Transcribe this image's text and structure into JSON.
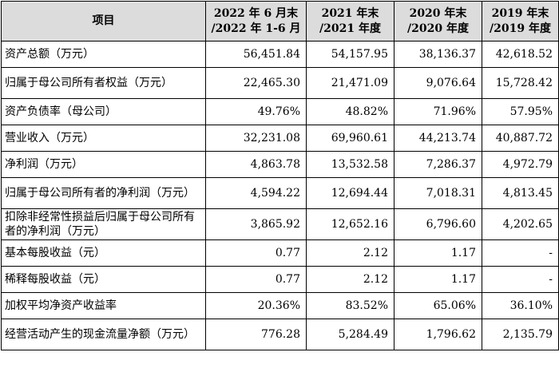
{
  "table": {
    "headers": [
      "项目",
      "2022 年 6 月末\n/2022 年 1-6 月",
      "2021 年末\n/2021 年度",
      "2020 年末\n/2020 年度",
      "2019 年末\n/2019 年度"
    ],
    "rows": [
      {
        "label": "资产总额（万元）",
        "values": [
          "56,451.84",
          "54,157.95",
          "38,136.37",
          "42,618.52"
        ]
      },
      {
        "label": "归属于母公司所有者权益（万元）",
        "values": [
          "22,465.30",
          "21,471.09",
          "9,076.64",
          "15,728.42"
        ]
      },
      {
        "label": "资产负债率（母公司）",
        "values": [
          "49.76%",
          "48.82%",
          "71.96%",
          "57.95%"
        ]
      },
      {
        "label": "营业收入（万元）",
        "values": [
          "32,231.08",
          "69,960.61",
          "44,213.74",
          "40,887.72"
        ]
      },
      {
        "label": "净利润（万元）",
        "values": [
          "4,863.78",
          "13,532.58",
          "7,286.37",
          "4,972.79"
        ]
      },
      {
        "label": "归属于母公司所有者的净利润（万元）",
        "values": [
          "4,594.22",
          "12,694.44",
          "7,018.31",
          "4,813.45"
        ]
      },
      {
        "label": "扣除非经常性损益后归属于母公司所有者的净利润（万元）",
        "values": [
          "3,865.92",
          "12,652.16",
          "6,796.60",
          "4,202.65"
        ]
      },
      {
        "label": "基本每股收益（元）",
        "values": [
          "0.77",
          "2.12",
          "1.17",
          "-"
        ]
      },
      {
        "label": "稀释每股收益（元）",
        "values": [
          "0.77",
          "2.12",
          "1.17",
          "-"
        ]
      },
      {
        "label": "加权平均净资产收益率",
        "values": [
          "20.36%",
          "83.52%",
          "65.06%",
          "36.10%"
        ]
      },
      {
        "label": "经营活动产生的现金流量净额（万元）",
        "values": [
          "776.28",
          "5,284.49",
          "1,796.62",
          "2,135.79"
        ]
      }
    ]
  }
}
